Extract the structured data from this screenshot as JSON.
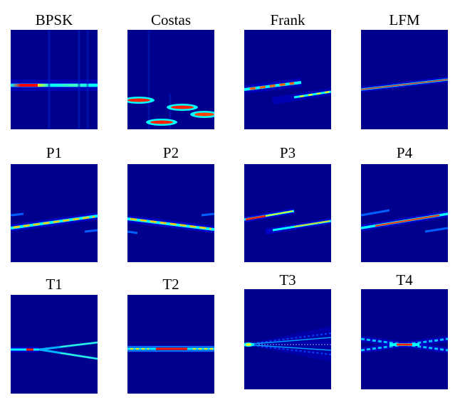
{
  "figure": {
    "background_color": "#ffffff",
    "colormap": [
      "#000080",
      "#0000ff",
      "#00a0ff",
      "#00ffff",
      "#80ff80",
      "#ffff00",
      "#ff8000",
      "#ff0000",
      "#800000"
    ],
    "panels": [
      {
        "id": "bpsk",
        "title": "BPSK"
      },
      {
        "id": "costas",
        "title": "Costas"
      },
      {
        "id": "frank",
        "title": "Frank"
      },
      {
        "id": "lfm",
        "title": "LFM"
      },
      {
        "id": "p1",
        "title": "P1"
      },
      {
        "id": "p2",
        "title": "P2"
      },
      {
        "id": "p3",
        "title": "P3"
      },
      {
        "id": "p4",
        "title": "P4"
      },
      {
        "id": "t1",
        "title": "T1"
      },
      {
        "id": "t2",
        "title": "T2"
      },
      {
        "id": "t3",
        "title": "T3"
      },
      {
        "id": "t4",
        "title": "T4"
      }
    ]
  }
}
